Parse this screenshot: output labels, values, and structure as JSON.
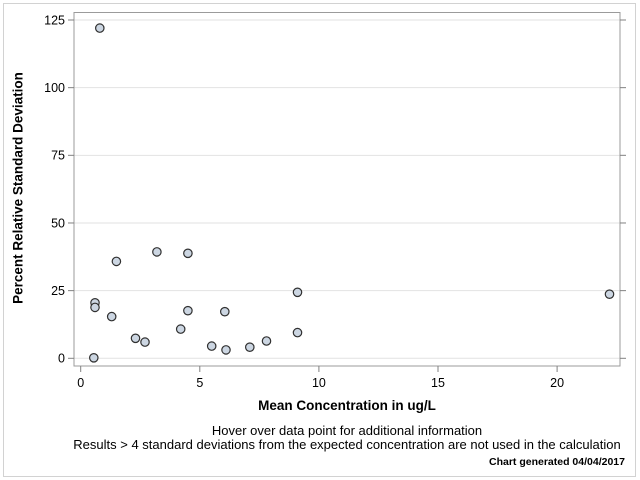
{
  "chart_data": {
    "type": "scatter",
    "title": "",
    "xlabel": "Mean Concentration in ug/L",
    "ylabel": "Percent Relative Standard Deviation",
    "xticks": [
      0,
      5,
      10,
      15,
      20
    ],
    "yticks": [
      0,
      25,
      50,
      75,
      100,
      125
    ],
    "xlim": [
      -0.3,
      22.7
    ],
    "ylim": [
      -3,
      128
    ],
    "grid": "horizontal-only",
    "legend": "none",
    "points": [
      {
        "x": 0.8,
        "y": 122
      },
      {
        "x": 0.6,
        "y": 20.5
      },
      {
        "x": 0.6,
        "y": 18.8
      },
      {
        "x": 0.55,
        "y": 0.2
      },
      {
        "x": 1.3,
        "y": 15.4
      },
      {
        "x": 1.5,
        "y": 35.8
      },
      {
        "x": 2.3,
        "y": 7.4
      },
      {
        "x": 2.7,
        "y": 6
      },
      {
        "x": 3.2,
        "y": 39.3
      },
      {
        "x": 4.2,
        "y": 10.8
      },
      {
        "x": 4.5,
        "y": 17.6
      },
      {
        "x": 4.5,
        "y": 38.8
      },
      {
        "x": 5.5,
        "y": 4.5
      },
      {
        "x": 6.05,
        "y": 17.2
      },
      {
        "x": 6.1,
        "y": 3.1
      },
      {
        "x": 7.1,
        "y": 4.1
      },
      {
        "x": 7.8,
        "y": 6.4
      },
      {
        "x": 9.1,
        "y": 24.4
      },
      {
        "x": 9.1,
        "y": 9.5
      },
      {
        "x": 22.2,
        "y": 23.7
      }
    ]
  },
  "footer": {
    "line1": "Hover over data point for additional information",
    "line2": "Results > 4 standard deviations from the expected concentration are not used in the calculation",
    "generated_note": "Chart generated 04/04/2017"
  },
  "colors": {
    "marker_fill": "#ccd6e2",
    "marker_stroke": "#303030",
    "plot_frame": "#9b9b9b",
    "gridline": "#e2e2e2",
    "tick": "#808080",
    "image_border": "#d2d2d2",
    "text": "#000000"
  }
}
